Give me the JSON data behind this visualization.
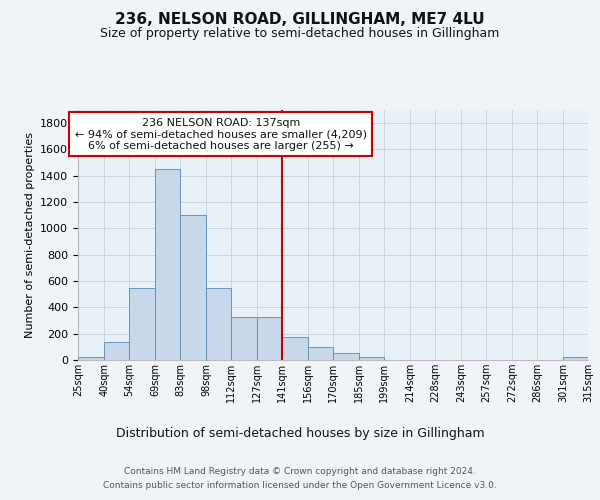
{
  "title": "236, NELSON ROAD, GILLINGHAM, ME7 4LU",
  "subtitle": "Size of property relative to semi-detached houses in Gillingham",
  "xlabel_bottom": "Distribution of semi-detached houses by size in Gillingham",
  "ylabel": "Number of semi-detached properties",
  "footer_line1": "Contains HM Land Registry data © Crown copyright and database right 2024.",
  "footer_line2": "Contains public sector information licensed under the Open Government Licence v3.0.",
  "annotation_line1": "236 NELSON ROAD: 137sqm",
  "annotation_line2": "← 94% of semi-detached houses are smaller (4,209)",
  "annotation_line3": "6% of semi-detached houses are larger (255) →",
  "bar_color": "#c8d8eb",
  "bar_edge_color": "#5a8ab0",
  "vline_color": "#cc0000",
  "vline_x": 141,
  "bin_edges": [
    25,
    40,
    54,
    69,
    83,
    98,
    112,
    127,
    141,
    156,
    170,
    185,
    199,
    214,
    228,
    243,
    257,
    272,
    286,
    301,
    315
  ],
  "bin_labels": [
    "25sqm",
    "40sqm",
    "54sqm",
    "69sqm",
    "83sqm",
    "98sqm",
    "112sqm",
    "127sqm",
    "141sqm",
    "156sqm",
    "170sqm",
    "185sqm",
    "199sqm",
    "214sqm",
    "228sqm",
    "243sqm",
    "257sqm",
    "272sqm",
    "286sqm",
    "301sqm",
    "315sqm"
  ],
  "counts": [
    20,
    140,
    545,
    1450,
    1100,
    545,
    325,
    325,
    175,
    100,
    50,
    20,
    0,
    0,
    0,
    0,
    0,
    0,
    0,
    20
  ],
  "ylim": [
    0,
    1900
  ],
  "yticks": [
    0,
    200,
    400,
    600,
    800,
    1000,
    1200,
    1400,
    1600,
    1800
  ],
  "bg_color": "#f0f4f8",
  "plot_bg_color": "#e8f0f8",
  "grid_color": "#c8d4e0",
  "title_fontsize": 11,
  "subtitle_fontsize": 9,
  "ylabel_fontsize": 8,
  "ytick_fontsize": 8,
  "xtick_fontsize": 7,
  "footer_fontsize": 6.5,
  "ann_fontsize": 8
}
